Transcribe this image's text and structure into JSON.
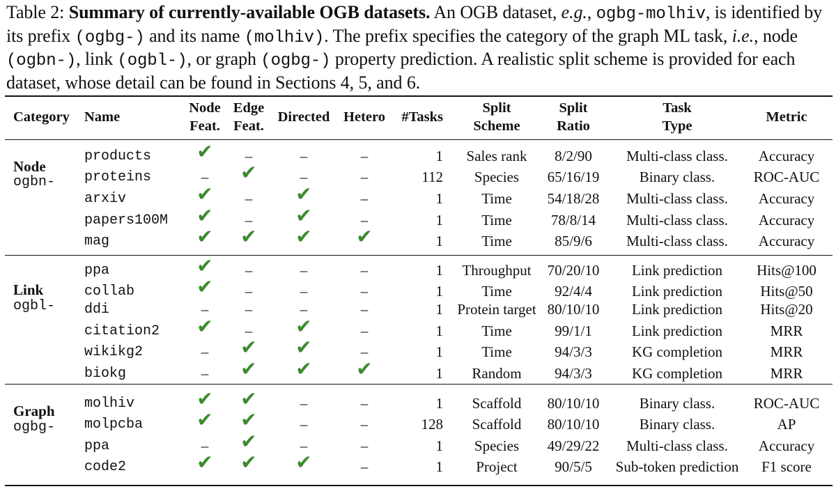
{
  "caption": {
    "label": "Table 2:",
    "title": "Summary of currently-available OGB datasets.",
    "s1": "An OGB dataset,",
    "eg": "e.g.",
    "s2": ",",
    "ex_name": "ogbg-molhiv",
    "s3": ", is identified by its prefix",
    "ex_prefix": "(ogbg-)",
    "s4": "and its name",
    "ex_short": "(molhiv)",
    "s5": ". The prefix specifies the category of the graph ML task,",
    "ie": "i.e.",
    "s6": ", node",
    "p_node": "(ogbn-)",
    "s7": ", link",
    "p_link": "(ogbl-)",
    "s8": ", or graph",
    "p_graph": "(ogbg-)",
    "s9": "property prediction. A realistic split scheme is provided for each dataset, whose detail can be found in Sections 4, 5, and 6."
  },
  "headers": {
    "category": "Category",
    "name": "Name",
    "node_feat": [
      "Node",
      "Feat."
    ],
    "edge_feat": [
      "Edge",
      "Feat."
    ],
    "directed": "Directed",
    "hetero": "Hetero",
    "tasks": "#Tasks",
    "split_scheme": [
      "Split",
      "Scheme"
    ],
    "split_ratio": [
      "Split",
      "Ratio"
    ],
    "task_type": [
      "Task",
      "Type"
    ],
    "metric": "Metric"
  },
  "symbols": {
    "check": "✔",
    "dash": "–"
  },
  "colors": {
    "check": "#3d8a2e",
    "text": "#111111"
  },
  "groups": [
    {
      "category": "Node",
      "prefix": "ogbn-",
      "rows": [
        {
          "name": "products",
          "node_feat": true,
          "edge_feat": false,
          "directed": false,
          "hetero": false,
          "tasks": "1",
          "split_scheme": "Sales rank",
          "split_ratio": "8/2/90",
          "task_type": "Multi-class class.",
          "metric": "Accuracy"
        },
        {
          "name": "proteins",
          "node_feat": false,
          "edge_feat": true,
          "directed": false,
          "hetero": false,
          "tasks": "112",
          "split_scheme": "Species",
          "split_ratio": "65/16/19",
          "task_type": "Binary class.",
          "metric": "ROC-AUC"
        },
        {
          "name": "arxiv",
          "node_feat": true,
          "edge_feat": false,
          "directed": true,
          "hetero": false,
          "tasks": "1",
          "split_scheme": "Time",
          "split_ratio": "54/18/28",
          "task_type": "Multi-class class.",
          "metric": "Accuracy"
        },
        {
          "name": "papers100M",
          "node_feat": true,
          "edge_feat": false,
          "directed": true,
          "hetero": false,
          "tasks": "1",
          "split_scheme": "Time",
          "split_ratio": "78/8/14",
          "task_type": "Multi-class class.",
          "metric": "Accuracy"
        },
        {
          "name": "mag",
          "node_feat": true,
          "edge_feat": true,
          "directed": true,
          "hetero": true,
          "tasks": "1",
          "split_scheme": "Time",
          "split_ratio": "85/9/6",
          "task_type": "Multi-class class.",
          "metric": "Accuracy"
        }
      ]
    },
    {
      "category": "Link",
      "prefix": "ogbl-",
      "rows": [
        {
          "name": "ppa",
          "node_feat": true,
          "edge_feat": false,
          "directed": false,
          "hetero": false,
          "tasks": "1",
          "split_scheme": "Throughput",
          "split_ratio": "70/20/10",
          "task_type": "Link prediction",
          "metric": "Hits@100"
        },
        {
          "name": "collab",
          "node_feat": true,
          "edge_feat": false,
          "directed": false,
          "hetero": false,
          "tasks": "1",
          "split_scheme": "Time",
          "split_ratio": "92/4/4",
          "task_type": "Link prediction",
          "metric": "Hits@50"
        },
        {
          "name": "ddi",
          "node_feat": false,
          "edge_feat": false,
          "directed": false,
          "hetero": false,
          "tasks": "1",
          "split_scheme": "Protein target",
          "split_ratio": "80/10/10",
          "task_type": "Link prediction",
          "metric": "Hits@20"
        },
        {
          "name": "citation2",
          "node_feat": true,
          "edge_feat": false,
          "directed": true,
          "hetero": false,
          "tasks": "1",
          "split_scheme": "Time",
          "split_ratio": "99/1/1",
          "task_type": "Link prediction",
          "metric": "MRR"
        },
        {
          "name": "wikikg2",
          "node_feat": false,
          "edge_feat": true,
          "directed": true,
          "hetero": false,
          "tasks": "1",
          "split_scheme": "Time",
          "split_ratio": "94/3/3",
          "task_type": "KG completion",
          "metric": "MRR"
        },
        {
          "name": "biokg",
          "node_feat": false,
          "edge_feat": true,
          "directed": true,
          "hetero": true,
          "tasks": "1",
          "split_scheme": "Random",
          "split_ratio": "94/3/3",
          "task_type": "KG completion",
          "metric": "MRR"
        }
      ]
    },
    {
      "category": "Graph",
      "prefix": "ogbg-",
      "rows": [
        {
          "name": "molhiv",
          "node_feat": true,
          "edge_feat": true,
          "directed": false,
          "hetero": false,
          "tasks": "1",
          "split_scheme": "Scaffold",
          "split_ratio": "80/10/10",
          "task_type": "Binary class.",
          "metric": "ROC-AUC"
        },
        {
          "name": "molpcba",
          "node_feat": true,
          "edge_feat": true,
          "directed": false,
          "hetero": false,
          "tasks": "128",
          "split_scheme": "Scaffold",
          "split_ratio": "80/10/10",
          "task_type": "Binary class.",
          "metric": "AP"
        },
        {
          "name": "ppa",
          "node_feat": false,
          "edge_feat": true,
          "directed": false,
          "hetero": false,
          "tasks": "1",
          "split_scheme": "Species",
          "split_ratio": "49/29/22",
          "task_type": "Multi-class class.",
          "metric": "Accuracy"
        },
        {
          "name": "code2",
          "node_feat": true,
          "edge_feat": true,
          "directed": true,
          "hetero": false,
          "tasks": "1",
          "split_scheme": "Project",
          "split_ratio": "90/5/5",
          "task_type": "Sub-token prediction",
          "metric": "F1 score"
        }
      ]
    }
  ]
}
